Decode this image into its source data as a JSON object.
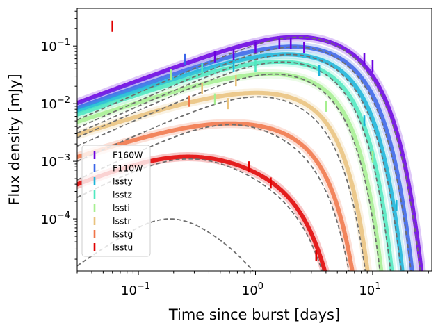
{
  "chart_data": {
    "type": "line",
    "xlabel": "Time since burst [days]",
    "ylabel": "Flux density [mJy]",
    "x_scale": "log",
    "y_scale": "log",
    "xlim": [
      0.03,
      32
    ],
    "ylim": [
      1.25e-05,
      0.45
    ],
    "x_ticks": [
      {
        "value": 0.1,
        "base": "10",
        "exp": "−1"
      },
      {
        "value": 1,
        "base": "10",
        "exp": "0"
      },
      {
        "value": 10,
        "base": "10",
        "exp": "1"
      }
    ],
    "y_ticks": [
      {
        "value": 0.0001,
        "base": "10",
        "exp": "−4"
      },
      {
        "value": 0.001,
        "base": "10",
        "exp": "−3"
      },
      {
        "value": 0.01,
        "base": "10",
        "exp": "−2"
      },
      {
        "value": 0.1,
        "base": "10",
        "exp": "−1"
      }
    ],
    "grid": false,
    "legend_position": "lower-left",
    "series": [
      {
        "name": "F160W",
        "color": "#6a00e0",
        "peak_flux": 0.14,
        "peak_time": 2.8,
        "rise_slope": 0.75,
        "decay_scale": 9.0,
        "decay_power": 2.0,
        "observations": [
          [
            0.45,
            0.065
          ],
          [
            0.65,
            0.07
          ],
          [
            1.0,
            0.095
          ],
          [
            1.6,
            0.11
          ],
          [
            2.0,
            0.11
          ],
          [
            2.6,
            0.095
          ],
          [
            8.5,
            0.06
          ],
          [
            10.0,
            0.045
          ]
        ]
      },
      {
        "name": "F110W",
        "color": "#3a64e8",
        "peak_flux": 0.095,
        "peak_time": 2.6,
        "rise_slope": 0.72,
        "decay_scale": 8.0,
        "decay_power": 2.1,
        "observations": [
          [
            0.25,
            0.058
          ]
        ]
      },
      {
        "name": "lssty",
        "color": "#19b4d9",
        "peak_flux": 0.07,
        "peak_time": 2.3,
        "rise_slope": 0.7,
        "decay_scale": 7.0,
        "decay_power": 2.2,
        "observations": [
          [
            0.65,
            0.045
          ],
          [
            3.5,
            0.038
          ],
          [
            8.5,
            0.005
          ],
          [
            16.0,
            0.00017
          ]
        ]
      },
      {
        "name": "lsstz",
        "color": "#4fe8c0",
        "peak_flux": 0.052,
        "peak_time": 2.0,
        "rise_slope": 0.68,
        "decay_scale": 6.0,
        "decay_power": 2.3,
        "observations": [
          [
            0.35,
            0.04
          ],
          [
            1.0,
            0.045
          ]
        ]
      },
      {
        "name": "lssti",
        "color": "#a6ef90",
        "peak_flux": 0.032,
        "peak_time": 1.7,
        "rise_slope": 0.66,
        "decay_scale": 5.0,
        "decay_power": 2.3,
        "observations": [
          [
            0.19,
            0.032
          ],
          [
            0.45,
            0.012
          ],
          [
            4.0,
            0.009
          ],
          [
            10.0,
            0.0012
          ]
        ]
      },
      {
        "name": "lsstr",
        "color": "#e9c27c",
        "peak_flux": 0.015,
        "peak_time": 1.3,
        "rise_slope": 0.64,
        "decay_scale": 4.0,
        "decay_power": 2.3,
        "observations": [
          [
            0.35,
            0.018
          ],
          [
            0.58,
            0.01
          ],
          [
            0.68,
            0.025
          ]
        ]
      },
      {
        "name": "lsstg",
        "color": "#f07448",
        "peak_flux": 0.0045,
        "peak_time": 0.7,
        "rise_slope": 0.65,
        "decay_scale": 3.2,
        "decay_power": 2.2,
        "observations": [
          [
            0.27,
            0.011
          ]
        ]
      },
      {
        "name": "lsstu",
        "color": "#e00000",
        "peak_flux": 0.0012,
        "peak_time": 0.28,
        "rise_slope": 0.8,
        "decay_scale": 2.2,
        "decay_power": 2.0,
        "observations": [
          [
            0.06,
            0.22
          ],
          [
            0.88,
            0.0008
          ],
          [
            1.35,
            0.00042
          ],
          [
            3.3,
            2.3e-05
          ]
        ]
      }
    ],
    "model_lines": [
      {
        "peak_flux": 0.14,
        "peak_time": 2.8,
        "rise_slope": 0.9,
        "decay_scale": 9.0,
        "decay_power": 2.0
      },
      {
        "peak_flux": 0.095,
        "peak_time": 2.6,
        "rise_slope": 0.9,
        "decay_scale": 8.0,
        "decay_power": 2.1
      },
      {
        "peak_flux": 0.07,
        "peak_time": 2.3,
        "rise_slope": 0.9,
        "decay_scale": 7.0,
        "decay_power": 2.2
      },
      {
        "peak_flux": 0.052,
        "peak_time": 2.0,
        "rise_slope": 0.9,
        "decay_scale": 6.0,
        "decay_power": 2.3
      },
      {
        "peak_flux": 0.032,
        "peak_time": 1.7,
        "rise_slope": 0.9,
        "decay_scale": 5.0,
        "decay_power": 2.3
      },
      {
        "peak_flux": 0.013,
        "peak_time": 1.2,
        "rise_slope": 0.9,
        "decay_scale": 4.0,
        "decay_power": 2.3
      },
      {
        "peak_flux": 0.0043,
        "peak_time": 0.65,
        "rise_slope": 0.95,
        "decay_scale": 3.2,
        "decay_power": 2.2
      },
      {
        "peak_flux": 0.0011,
        "peak_time": 0.28,
        "rise_slope": 1.0,
        "decay_scale": 2.3,
        "decay_power": 2.0
      },
      {
        "peak_flux": 0.0001,
        "peak_time": 0.19,
        "rise_slope": 1.4,
        "decay_scale": 1.3,
        "decay_power": 2.0
      }
    ],
    "model_color": "#6e6e6e"
  }
}
